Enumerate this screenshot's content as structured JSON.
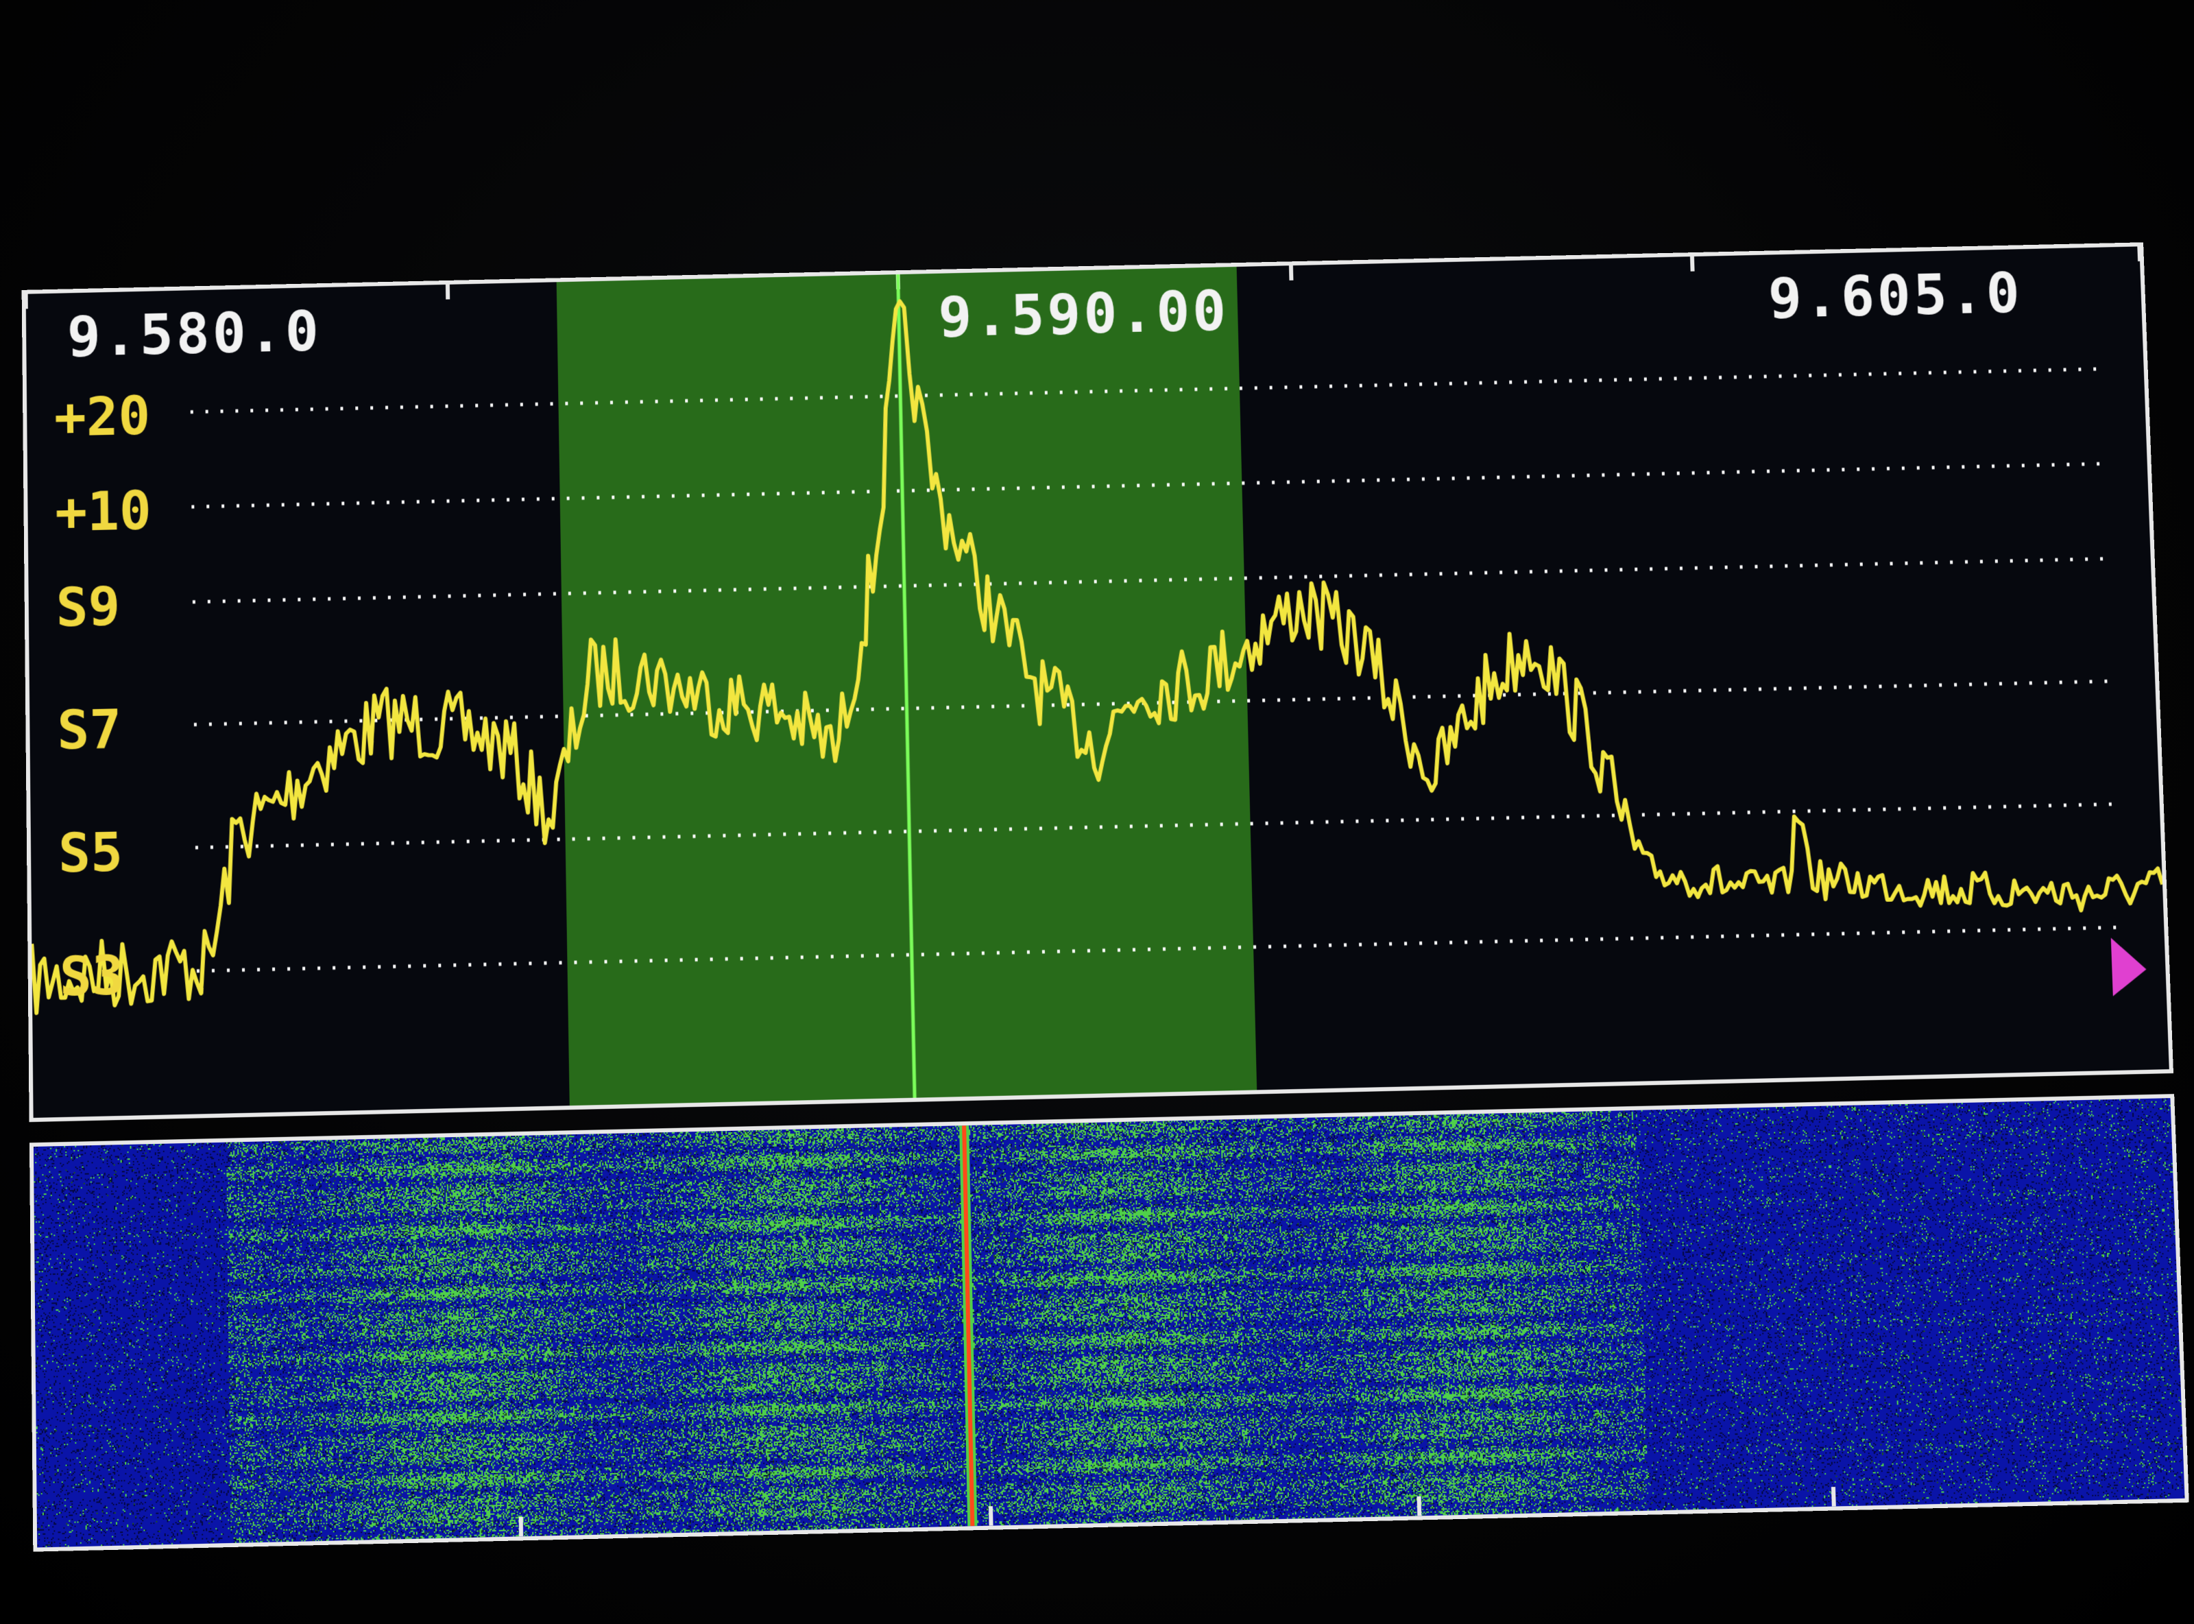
{
  "frequency_scale": {
    "left": "9.580.0",
    "center": "9.590.00",
    "right": "9.605.0"
  },
  "s_meter_scale": [
    "+20",
    "+10",
    "S9",
    "S7",
    "S5",
    "S3"
  ],
  "colors": {
    "trace": "#f2e640",
    "passband": "#2f7d1c",
    "center_marker": "#7cff5a",
    "waterfall_base": "#0a14a8",
    "waterfall_signal": "#4fd04a",
    "waterfall_carrier": "#ff4a1a",
    "grid_dots": "#ffffff",
    "frame": "#e8e8e8"
  },
  "icons": {
    "cursor": "magenta-triangle-icon"
  }
}
